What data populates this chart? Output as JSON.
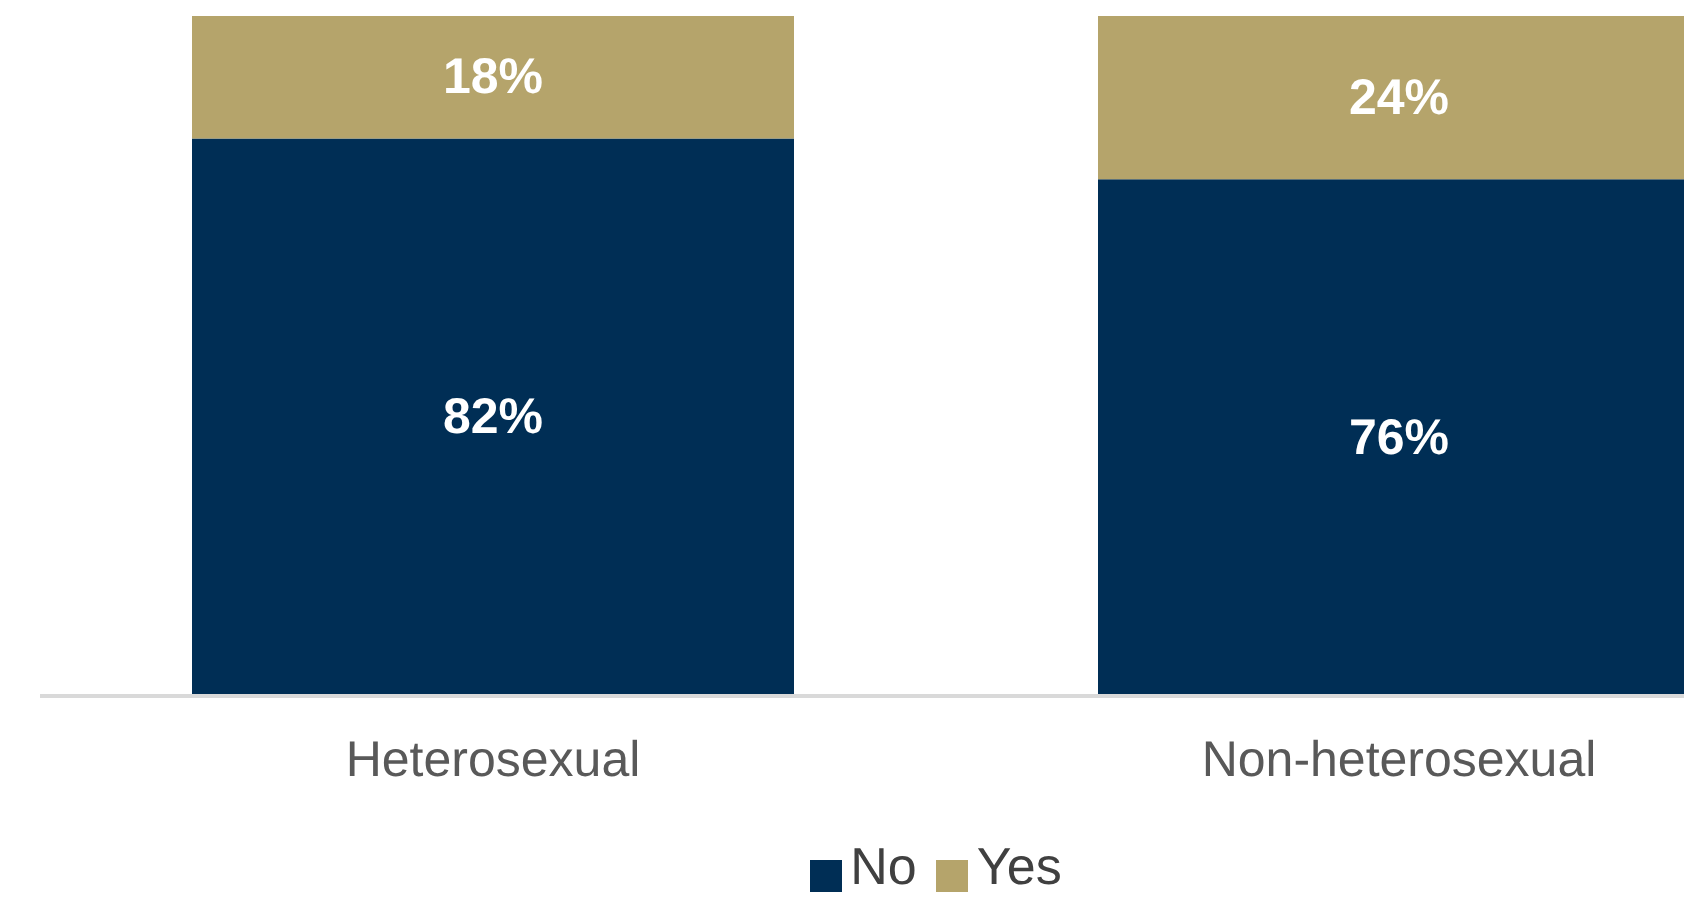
{
  "chart_data": {
    "type": "bar",
    "stacked": true,
    "categories": [
      "Heterosexual",
      "Non-heterosexual"
    ],
    "series": [
      {
        "name": "No",
        "color": "#002e55",
        "values": [
          82,
          76
        ],
        "value_labels": [
          "82%",
          "76%"
        ]
      },
      {
        "name": "Yes",
        "color": "#b5a46b",
        "values": [
          18,
          24
        ],
        "value_labels": [
          "18%",
          "24%"
        ]
      }
    ],
    "ylim": [
      0,
      100
    ],
    "tick_labels": "x",
    "grid": false,
    "legend": "bottom"
  }
}
